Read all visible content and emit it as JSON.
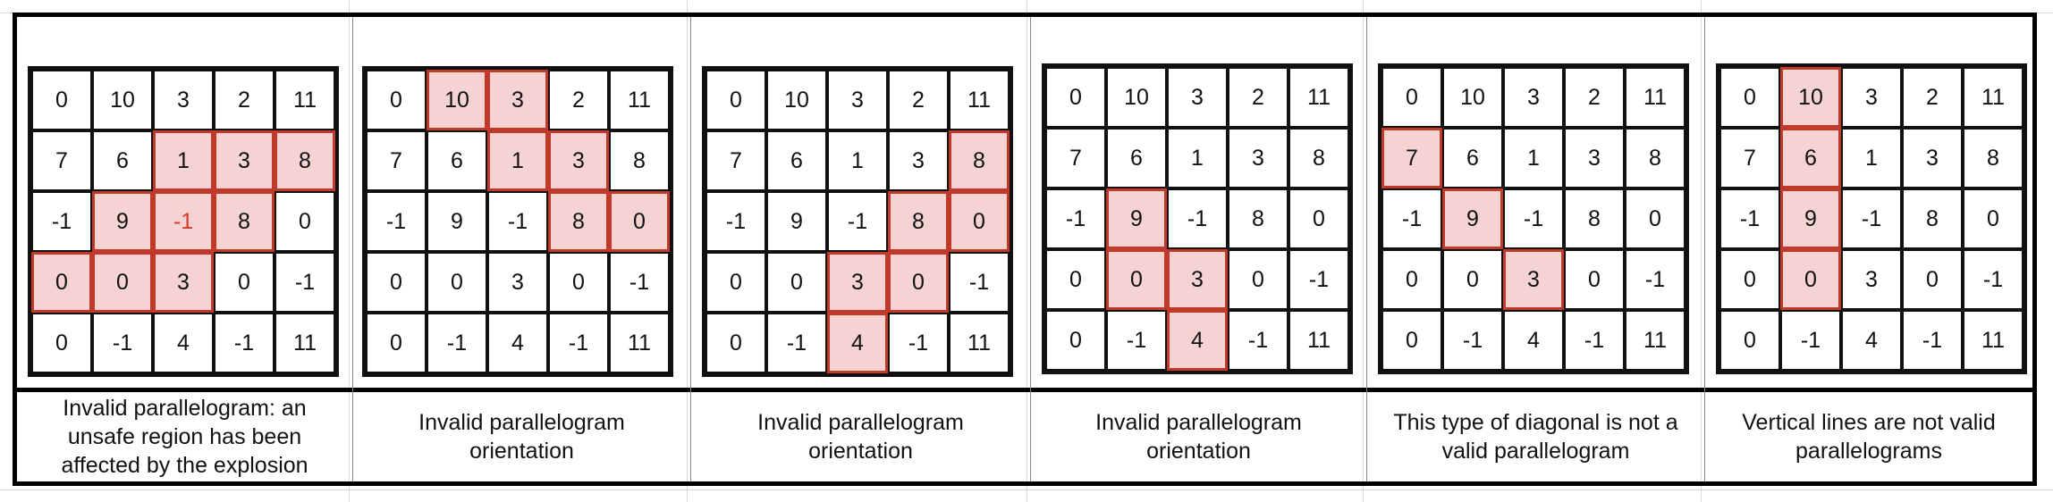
{
  "grid_values": [
    [
      "0",
      "10",
      "3",
      "2",
      "11"
    ],
    [
      "7",
      "6",
      "1",
      "3",
      "8"
    ],
    [
      "-1",
      "9",
      "-1",
      "8",
      "0"
    ],
    [
      "0",
      "0",
      "3",
      "0",
      "-1"
    ],
    [
      "0",
      "-1",
      "4",
      "-1",
      "11"
    ]
  ],
  "colors": {
    "highlight_fill": "#f6d3d3",
    "highlight_border": "#c0392b",
    "unsafe_text": "#d23b2b"
  },
  "panels": [
    {
      "caption": "Invalid parallelogram: an unsafe region has been affected by the explosion",
      "highlighted": [
        [
          1,
          2
        ],
        [
          1,
          3
        ],
        [
          1,
          4
        ],
        [
          2,
          1
        ],
        [
          2,
          2
        ],
        [
          2,
          3
        ],
        [
          3,
          0
        ],
        [
          3,
          1
        ],
        [
          3,
          2
        ]
      ],
      "red_text": [
        [
          2,
          2
        ]
      ]
    },
    {
      "caption": "Invalid parallelogram orientation",
      "highlighted": [
        [
          0,
          1
        ],
        [
          0,
          2
        ],
        [
          1,
          2
        ],
        [
          1,
          3
        ],
        [
          2,
          3
        ],
        [
          2,
          4
        ]
      ],
      "red_text": []
    },
    {
      "caption": "Invalid parallelogram orientation",
      "highlighted": [
        [
          1,
          4
        ],
        [
          2,
          3
        ],
        [
          2,
          4
        ],
        [
          3,
          2
        ],
        [
          3,
          3
        ],
        [
          4,
          2
        ]
      ],
      "red_text": []
    },
    {
      "caption": "Invalid parallelogram orientation",
      "highlighted": [
        [
          2,
          1
        ],
        [
          3,
          1
        ],
        [
          3,
          2
        ],
        [
          4,
          2
        ]
      ],
      "red_text": []
    },
    {
      "caption": "This type of diagonal is not a valid parallelogram",
      "highlighted": [
        [
          1,
          0
        ],
        [
          2,
          1
        ],
        [
          3,
          2
        ]
      ],
      "red_text": []
    },
    {
      "caption": "Vertical lines are not valid parallelograms",
      "highlighted": [
        [
          0,
          1
        ],
        [
          1,
          1
        ],
        [
          2,
          1
        ],
        [
          3,
          1
        ]
      ],
      "red_text": []
    }
  ]
}
